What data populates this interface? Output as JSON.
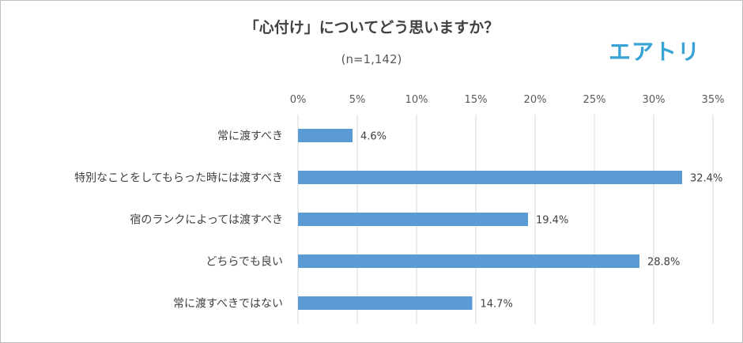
{
  "brand": {
    "name": "エアトリ",
    "color": "#3aa3d6"
  },
  "chart_data": {
    "type": "bar",
    "orientation": "horizontal",
    "title": "「心付け」についてどう思いますか？",
    "subtitle": "(n=1,142)",
    "categories": [
      "常に渡すべき",
      "特別なことをしてもらった時には渡すべき",
      "宿のランクによっては渡すべき",
      "どちらでも良い",
      "常に渡すべきではない"
    ],
    "values": [
      4.6,
      32.4,
      19.4,
      28.8,
      14.7
    ],
    "value_labels": [
      "4.6%",
      "32.4%",
      "19.4%",
      "28.8%",
      "14.7%"
    ],
    "xlim": [
      0,
      35
    ],
    "xticks": [
      "0%",
      "5%",
      "10%",
      "15%",
      "20%",
      "25%",
      "30%",
      "35%"
    ],
    "grid": true,
    "legend": "none",
    "bar_color": "#5b9bd5"
  }
}
